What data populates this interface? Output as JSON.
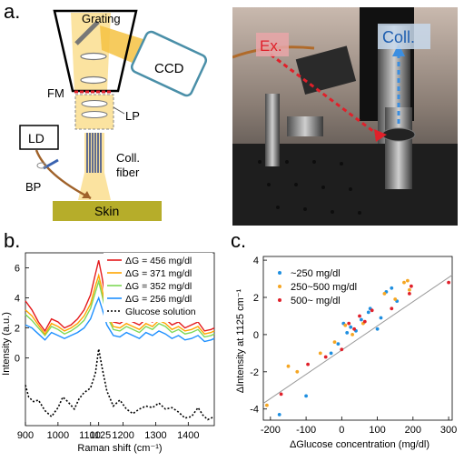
{
  "panels": {
    "a_label": "a.",
    "b_label": "b.",
    "c_label": "c."
  },
  "schematic": {
    "grating": "Grating",
    "ccd": "CCD",
    "fm": "FM",
    "lp": "LP",
    "ld": "LD",
    "coll_fiber_1": "Coll.",
    "coll_fiber_2": "fiber",
    "bp": "BP",
    "skin": "Skin",
    "colors": {
      "beam": "#f5c242",
      "beam_light": "#fbe3a0",
      "ccd_stroke": "#4a8fa8",
      "skin": "#b6ad2a",
      "fm": "#e0202a",
      "ld_arrow": "#a0622a",
      "fiber": "#3a4f8c"
    }
  },
  "photo": {
    "ex_label": "Ex.",
    "coll_label": "Coll.",
    "colors": {
      "ex": "#e0202a",
      "coll": "#3b8ee0"
    }
  },
  "chart_data": [
    {
      "type": "line",
      "ylabel": "Intensity (a.u.)",
      "xlabel": "Raman shift (cm⁻¹)",
      "xlim": [
        900,
        1480
      ],
      "ylim": [
        -4.5,
        7
      ],
      "x_ticks": [
        900,
        1000,
        1100,
        1125,
        1200,
        1300,
        1400
      ],
      "x_tick_labels": [
        "900",
        "1000",
        "1100",
        "1125",
        "1200",
        "1300",
        "1400"
      ],
      "y_ticks": [
        0,
        2,
        4,
        6
      ],
      "legend_position": "top-right",
      "series": [
        {
          "name": "ΔG = 456 mg/dl",
          "color": "#e41a1c",
          "style": "solid",
          "points": [
            [
              900,
              3.8
            ],
            [
              920,
              3.2
            ],
            [
              940,
              2.4
            ],
            [
              960,
              1.8
            ],
            [
              980,
              2.6
            ],
            [
              1000,
              2.4
            ],
            [
              1020,
              2.0
            ],
            [
              1040,
              2.2
            ],
            [
              1060,
              2.6
            ],
            [
              1080,
              3.2
            ],
            [
              1100,
              4.2
            ],
            [
              1115,
              5.6
            ],
            [
              1125,
              6.5
            ],
            [
              1135,
              5.4
            ],
            [
              1150,
              3.4
            ],
            [
              1170,
              2.4
            ],
            [
              1190,
              2.3
            ],
            [
              1210,
              2.6
            ],
            [
              1230,
              2.4
            ],
            [
              1250,
              2.2
            ],
            [
              1270,
              2.6
            ],
            [
              1290,
              2.4
            ],
            [
              1310,
              2.8
            ],
            [
              1330,
              2.6
            ],
            [
              1350,
              2.2
            ],
            [
              1370,
              2.4
            ],
            [
              1390,
              2.0
            ],
            [
              1410,
              2.2
            ],
            [
              1430,
              2.4
            ],
            [
              1450,
              1.8
            ],
            [
              1470,
              1.9
            ],
            [
              1480,
              2.0
            ]
          ]
        },
        {
          "name": "ΔG = 371 mg/dl",
          "color": "#ffa500",
          "style": "solid",
          "points": [
            [
              900,
              3.2
            ],
            [
              920,
              2.8
            ],
            [
              940,
              2.2
            ],
            [
              960,
              1.6
            ],
            [
              980,
              2.3
            ],
            [
              1000,
              2.1
            ],
            [
              1020,
              1.8
            ],
            [
              1040,
              2.0
            ],
            [
              1060,
              2.3
            ],
            [
              1080,
              2.8
            ],
            [
              1100,
              3.6
            ],
            [
              1115,
              4.8
            ],
            [
              1125,
              5.5
            ],
            [
              1135,
              4.6
            ],
            [
              1150,
              3.0
            ],
            [
              1170,
              2.1
            ],
            [
              1190,
              2.0
            ],
            [
              1210,
              2.3
            ],
            [
              1230,
              2.1
            ],
            [
              1250,
              1.9
            ],
            [
              1270,
              2.3
            ],
            [
              1290,
              2.1
            ],
            [
              1310,
              2.5
            ],
            [
              1330,
              2.3
            ],
            [
              1350,
              1.9
            ],
            [
              1370,
              2.1
            ],
            [
              1390,
              1.8
            ],
            [
              1410,
              1.9
            ],
            [
              1430,
              2.1
            ],
            [
              1450,
              1.6
            ],
            [
              1470,
              1.7
            ],
            [
              1480,
              1.8
            ]
          ]
        },
        {
          "name": "ΔG = 352 mg/dl",
          "color": "#7ed957",
          "style": "solid",
          "points": [
            [
              900,
              2.9
            ],
            [
              920,
              2.5
            ],
            [
              940,
              2.0
            ],
            [
              960,
              1.5
            ],
            [
              980,
              2.1
            ],
            [
              1000,
              1.9
            ],
            [
              1020,
              1.6
            ],
            [
              1040,
              1.8
            ],
            [
              1060,
              2.1
            ],
            [
              1080,
              2.5
            ],
            [
              1100,
              3.3
            ],
            [
              1115,
              4.4
            ],
            [
              1125,
              5.1
            ],
            [
              1135,
              4.2
            ],
            [
              1150,
              2.8
            ],
            [
              1170,
              1.9
            ],
            [
              1190,
              1.8
            ],
            [
              1210,
              2.1
            ],
            [
              1230,
              1.9
            ],
            [
              1250,
              1.7
            ],
            [
              1270,
              2.1
            ],
            [
              1290,
              1.9
            ],
            [
              1310,
              2.3
            ],
            [
              1330,
              2.1
            ],
            [
              1350,
              1.7
            ],
            [
              1370,
              1.9
            ],
            [
              1390,
              1.6
            ],
            [
              1410,
              1.7
            ],
            [
              1430,
              1.9
            ],
            [
              1450,
              1.4
            ],
            [
              1470,
              1.5
            ],
            [
              1480,
              1.6
            ]
          ]
        },
        {
          "name": "ΔG = 256 mg/dl",
          "color": "#1e90ff",
          "style": "solid",
          "points": [
            [
              900,
              2.2
            ],
            [
              920,
              2.0
            ],
            [
              940,
              1.6
            ],
            [
              960,
              1.2
            ],
            [
              980,
              1.7
            ],
            [
              1000,
              1.5
            ],
            [
              1020,
              1.3
            ],
            [
              1040,
              1.5
            ],
            [
              1060,
              1.7
            ],
            [
              1080,
              2.0
            ],
            [
              1100,
              2.6
            ],
            [
              1115,
              3.5
            ],
            [
              1125,
              4.0
            ],
            [
              1135,
              3.3
            ],
            [
              1150,
              2.2
            ],
            [
              1170,
              1.5
            ],
            [
              1190,
              1.4
            ],
            [
              1210,
              1.7
            ],
            [
              1230,
              1.5
            ],
            [
              1250,
              1.3
            ],
            [
              1270,
              1.7
            ],
            [
              1290,
              1.5
            ],
            [
              1310,
              1.8
            ],
            [
              1330,
              1.6
            ],
            [
              1350,
              1.3
            ],
            [
              1370,
              1.5
            ],
            [
              1390,
              1.2
            ],
            [
              1410,
              1.3
            ],
            [
              1430,
              1.5
            ],
            [
              1450,
              1.1
            ],
            [
              1470,
              1.2
            ],
            [
              1480,
              1.3
            ]
          ]
        },
        {
          "name": "Glucose solution",
          "color": "#000000",
          "style": "dotted",
          "points": [
            [
              900,
              -1.8
            ],
            [
              910,
              -2.6
            ],
            [
              925,
              -2.9
            ],
            [
              940,
              -2.8
            ],
            [
              960,
              -3.5
            ],
            [
              980,
              -3.9
            ],
            [
              1000,
              -3.3
            ],
            [
              1015,
              -2.6
            ],
            [
              1030,
              -2.9
            ],
            [
              1050,
              -3.4
            ],
            [
              1065,
              -2.7
            ],
            [
              1080,
              -2.3
            ],
            [
              1100,
              -2.0
            ],
            [
              1115,
              -1.0
            ],
            [
              1125,
              0.6
            ],
            [
              1135,
              -0.6
            ],
            [
              1150,
              -2.2
            ],
            [
              1170,
              -3.2
            ],
            [
              1190,
              -2.8
            ],
            [
              1210,
              -3.4
            ],
            [
              1230,
              -3.7
            ],
            [
              1250,
              -3.4
            ],
            [
              1270,
              -3.2
            ],
            [
              1290,
              -3.3
            ],
            [
              1310,
              -3.0
            ],
            [
              1330,
              -3.4
            ],
            [
              1350,
              -3.3
            ],
            [
              1370,
              -3.6
            ],
            [
              1390,
              -4.0
            ],
            [
              1410,
              -3.9
            ],
            [
              1430,
              -3.3
            ],
            [
              1445,
              -3.8
            ],
            [
              1460,
              -4.1
            ],
            [
              1480,
              -3.9
            ]
          ]
        }
      ]
    },
    {
      "type": "scatter",
      "xlabel": "ΔGlucose concentration (mg/dl)",
      "ylabel": "ΔIntensity at 1125 cm⁻¹",
      "xlim": [
        -220,
        310
      ],
      "ylim": [
        -4.6,
        4.2
      ],
      "x_ticks": [
        -200,
        -100,
        0,
        100,
        200,
        300
      ],
      "y_ticks": [
        -4,
        -2,
        0,
        2,
        4
      ],
      "legend_position": "top-left",
      "fit_line": [
        [
          -220,
          -3.7
        ],
        [
          310,
          3.2
        ]
      ],
      "series": [
        {
          "name": "~250 mg/dl",
          "color": "#1f8fe0",
          "points": [
            [
              -175,
              -4.3
            ],
            [
              -100,
              -3.3
            ],
            [
              -30,
              -1.0
            ],
            [
              -10,
              -0.5
            ],
            [
              5,
              0.6
            ],
            [
              15,
              0.1
            ],
            [
              25,
              0.4
            ],
            [
              40,
              0.2
            ],
            [
              55,
              0.8
            ],
            [
              75,
              1.2
            ],
            [
              80,
              1.4
            ],
            [
              100,
              0.3
            ],
            [
              110,
              0.9
            ],
            [
              125,
              2.3
            ],
            [
              140,
              2.5
            ],
            [
              155,
              1.8
            ]
          ]
        },
        {
          "name": "250~500 mg/dl",
          "color": "#f5a623",
          "points": [
            [
              -210,
              -3.8
            ],
            [
              -150,
              -1.7
            ],
            [
              -125,
              -2.0
            ],
            [
              -60,
              -1.0
            ],
            [
              -20,
              -0.4
            ],
            [
              10,
              0.5
            ],
            [
              30,
              0.0
            ],
            [
              60,
              0.6
            ],
            [
              120,
              2.2
            ],
            [
              150,
              1.9
            ],
            [
              175,
              2.8
            ],
            [
              185,
              2.9
            ],
            [
              190,
              2.4
            ]
          ]
        },
        {
          "name": "500~ mg/dl",
          "color": "#e0202a",
          "points": [
            [
              -170,
              -3.2
            ],
            [
              -95,
              -1.6
            ],
            [
              -45,
              -1.2
            ],
            [
              0,
              -0.8
            ],
            [
              20,
              0.6
            ],
            [
              35,
              0.3
            ],
            [
              50,
              1.0
            ],
            [
              65,
              0.7
            ],
            [
              85,
              1.3
            ],
            [
              140,
              1.4
            ],
            [
              190,
              2.2
            ],
            [
              195,
              2.6
            ],
            [
              300,
              2.8
            ]
          ]
        }
      ]
    }
  ]
}
